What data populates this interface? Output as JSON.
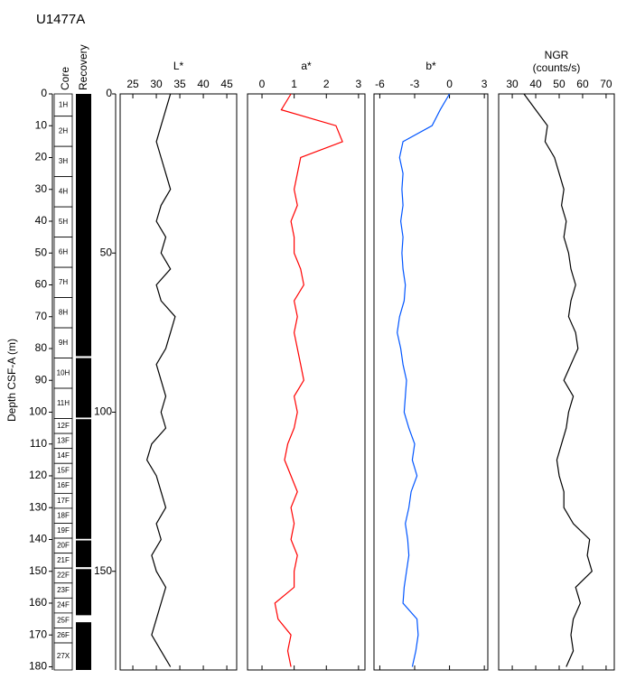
{
  "chart_data": {
    "type": "well-log",
    "title": "U1477A",
    "ylabel": "Depth CSF-A (m)",
    "core_header": "Core",
    "recovery_header": "Recovery",
    "ylim": [
      0,
      181
    ],
    "yticks": [
      0,
      10,
      20,
      30,
      40,
      50,
      60,
      70,
      80,
      90,
      100,
      110,
      120,
      130,
      140,
      150,
      160,
      170,
      180
    ],
    "y2ticks": [
      0,
      50,
      100,
      150
    ],
    "cores": [
      {
        "label": "1H",
        "top": 0
      },
      {
        "label": "2H",
        "top": 7
      },
      {
        "label": "3H",
        "top": 16.5
      },
      {
        "label": "4H",
        "top": 26
      },
      {
        "label": "5H",
        "top": 35.5
      },
      {
        "label": "6H",
        "top": 45
      },
      {
        "label": "7H",
        "top": 54.5
      },
      {
        "label": "8H",
        "top": 64
      },
      {
        "label": "9H",
        "top": 73.5
      },
      {
        "label": "10H",
        "top": 83
      },
      {
        "label": "11H",
        "top": 92.5
      },
      {
        "label": "12F",
        "top": 102
      },
      {
        "label": "13F",
        "top": 106.7
      },
      {
        "label": "14F",
        "top": 111.4
      },
      {
        "label": "15F",
        "top": 116.1
      },
      {
        "label": "16F",
        "top": 120.8
      },
      {
        "label": "17F",
        "top": 125.5
      },
      {
        "label": "18F",
        "top": 130.2
      },
      {
        "label": "19F",
        "top": 134.9
      },
      {
        "label": "20F",
        "top": 139.6
      },
      {
        "label": "21F",
        "top": 144.3
      },
      {
        "label": "22F",
        "top": 149
      },
      {
        "label": "23F",
        "top": 153.7
      },
      {
        "label": "24F",
        "top": 158.4
      },
      {
        "label": "25F",
        "top": 163.1
      },
      {
        "label": "26F",
        "top": 167.8
      },
      {
        "label": "27X",
        "top": 172.5
      }
    ],
    "recovery_gaps": [
      [
        82.4,
        83
      ],
      [
        101.7,
        102.2
      ],
      [
        139.8,
        140.3
      ],
      [
        148.7,
        149.3
      ],
      [
        163.8,
        166
      ]
    ],
    "depth": [
      0,
      5,
      10,
      15,
      20,
      25,
      30,
      35,
      40,
      45,
      50,
      55,
      60,
      65,
      70,
      75,
      80,
      85,
      90,
      95,
      100,
      105,
      110,
      115,
      120,
      125,
      130,
      135,
      140,
      145,
      150,
      155,
      160,
      165,
      170,
      175,
      180
    ],
    "panels": [
      {
        "name": "L*",
        "color": "#000000",
        "xlim": [
          22.3,
          47.1
        ],
        "xticks": [
          25,
          30,
          35,
          40,
          45
        ],
        "values": [
          33,
          32,
          31,
          30,
          31,
          32,
          33,
          31,
          30,
          32,
          31,
          33,
          30,
          31,
          34,
          33,
          32,
          30,
          31,
          32,
          31,
          32,
          29,
          28,
          30,
          31,
          32,
          30,
          31,
          29,
          30,
          32,
          31,
          30,
          29,
          31,
          33
        ]
      },
      {
        "name": "a*",
        "color": "#ff0000",
        "xlim": [
          -0.45,
          3.2
        ],
        "xticks": [
          0,
          1,
          2,
          3
        ],
        "values": [
          0.9,
          0.6,
          2.3,
          2.5,
          1.2,
          1.1,
          1.0,
          1.1,
          0.9,
          1.0,
          1.0,
          1.2,
          1.3,
          1.0,
          1.1,
          1.0,
          1.1,
          1.2,
          1.3,
          1.0,
          1.1,
          1.0,
          0.8,
          0.7,
          0.9,
          1.1,
          0.9,
          1.0,
          0.9,
          1.1,
          1.0,
          1.0,
          0.4,
          0.5,
          0.9,
          0.8,
          0.9
        ]
      },
      {
        "name": "b*",
        "color": "#0055ff",
        "xlim": [
          -6.5,
          3.3
        ],
        "xticks": [
          -6,
          -3,
          0,
          3
        ],
        "values": [
          0,
          -0.8,
          -1.5,
          -4,
          -4.3,
          -4,
          -4.1,
          -4,
          -4.2,
          -4,
          -4.1,
          -4,
          -3.8,
          -3.9,
          -4.3,
          -4.5,
          -4.2,
          -4,
          -3.7,
          -3.8,
          -3.9,
          -3.5,
          -3,
          -3.2,
          -2.8,
          -3.3,
          -3.5,
          -3.8,
          -3.6,
          -3.5,
          -3.7,
          -3.9,
          -4,
          -2.8,
          -2.7,
          -2.9,
          -3.2
        ]
      },
      {
        "name": "NGR",
        "unit": "(counts/s)",
        "color": "#000000",
        "xlim": [
          24.2,
          73.5
        ],
        "xticks": [
          30,
          40,
          50,
          60,
          70
        ],
        "values": [
          35,
          40,
          45,
          44,
          48,
          50,
          52,
          51,
          53,
          52,
          54,
          55,
          57,
          55,
          54,
          57,
          58,
          55,
          52,
          56,
          54,
          53,
          51,
          49,
          50,
          52,
          52,
          56,
          63,
          62,
          64,
          57,
          59,
          56,
          55,
          56,
          53
        ]
      }
    ]
  }
}
